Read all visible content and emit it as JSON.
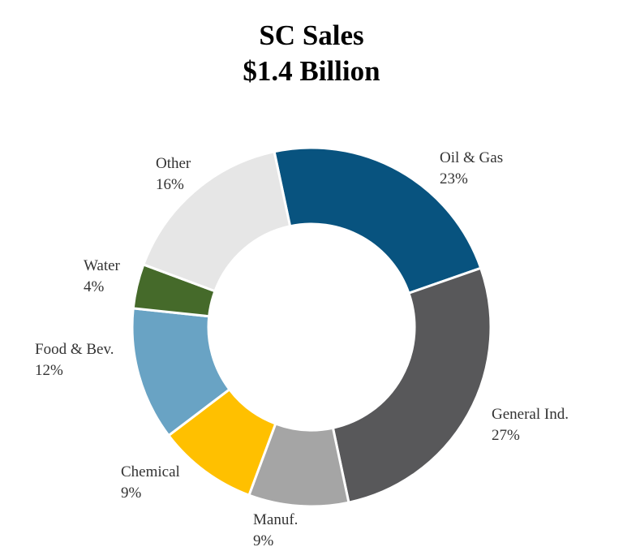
{
  "chart_data": {
    "type": "pie",
    "variant": "donut",
    "title": "SC Sales",
    "subtitle": "$1.4 Billion",
    "legend": "none",
    "slices": [
      {
        "label": "Oil & Gas",
        "value": 23,
        "value_label": "23%",
        "color": "#08537F"
      },
      {
        "label": "General Ind.",
        "value": 27,
        "value_label": "27%",
        "color": "#58585A"
      },
      {
        "label": "Manuf.",
        "value": 9,
        "value_label": "9%",
        "color": "#A5A5A5"
      },
      {
        "label": "Chemical",
        "value": 9,
        "value_label": "9%",
        "color": "#FFC000"
      },
      {
        "label": "Food & Bev.",
        "value": 12,
        "value_label": "12%",
        "color": "#69A3C4"
      },
      {
        "label": "Water",
        "value": 4,
        "value_label": "4%",
        "color": "#456A2A"
      },
      {
        "label": "Other",
        "value": 16,
        "value_label": "16%",
        "color": "#E6E6E6"
      }
    ]
  }
}
